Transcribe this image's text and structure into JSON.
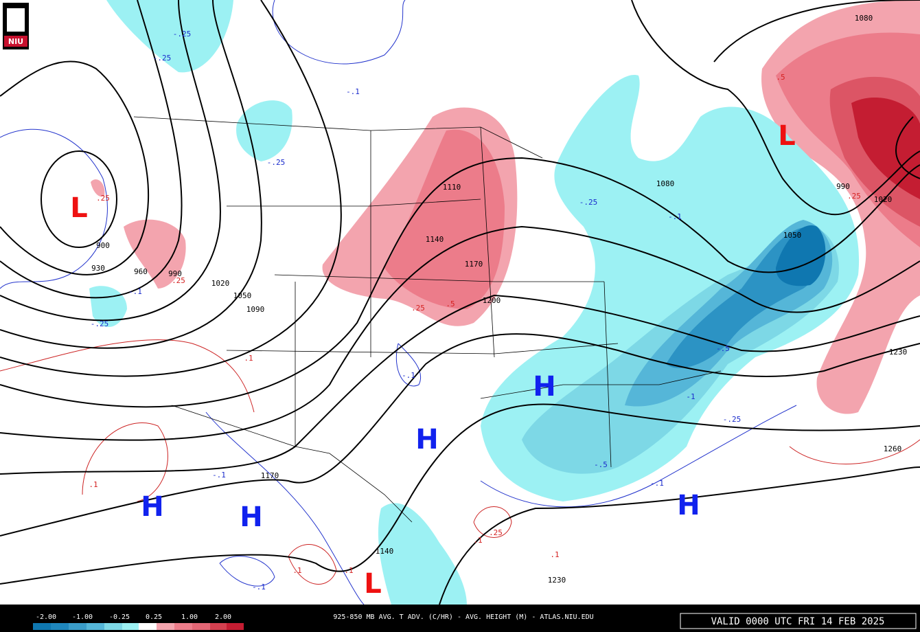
{
  "logo": "NIU",
  "header": {
    "title": "925-850 MB AVG. T ADV. (C/HR) - AVG. HEIGHT (M) - ATLAS.NIU.EDU",
    "valid": "VALID 0000 UTC FRI 14 FEB 2025"
  },
  "colorbar": {
    "labels": [
      "-2.00",
      "-1.00",
      "-0.25",
      "0.25",
      "1.00",
      "2.00"
    ]
  },
  "centers": [
    "L",
    "L",
    "L",
    "H",
    "H",
    "H",
    "H",
    "H"
  ],
  "height_labels": [
    "900",
    "930",
    "960",
    "990",
    "1020",
    "1050",
    "1090",
    "1110",
    "1140",
    "1170",
    "1200",
    "1170",
    "1140",
    "1230",
    "1080",
    "1050",
    "990",
    "1020",
    "1080",
    "1230",
    "1260"
  ],
  "advection_labels": [
    ".25",
    ".25",
    ".1",
    ".25",
    ".5",
    ".1",
    ".25",
    ".1",
    ".1",
    ".1",
    ".1",
    ".5",
    ".25",
    "-.25",
    "-.25",
    "-.1",
    "-.25",
    "-.1",
    "-.25",
    "-.1",
    "-.5",
    "-1",
    "-.25",
    "-.5",
    "-.1",
    "-.1",
    "-.1",
    "-.25",
    "-.1"
  ]
}
